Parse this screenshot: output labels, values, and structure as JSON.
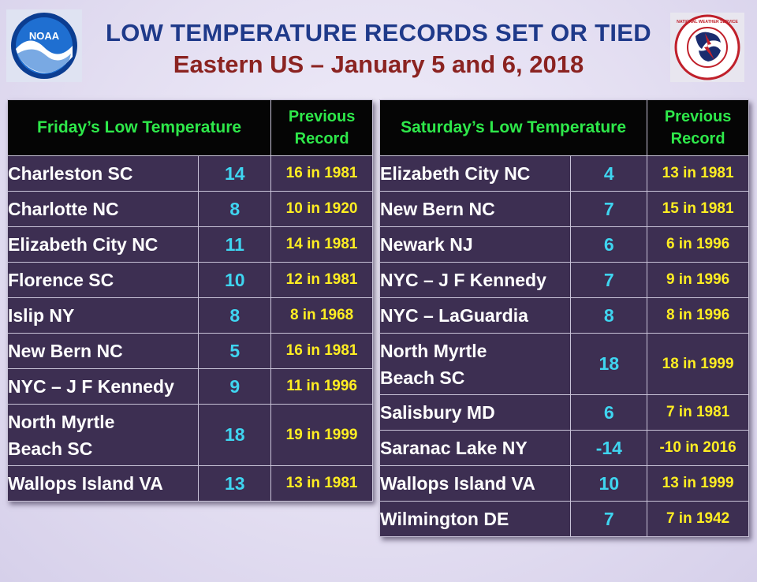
{
  "header": {
    "title": "LOW TEMPERATURE RECORDS  SET OR TIED",
    "subtitle": "Eastern US – January 5 and 6, 2018",
    "logo_left": "NOAA",
    "logo_right": "NATIONAL WEATHER SERVICE"
  },
  "colors": {
    "header_text": "#2ee84a",
    "city_text": "#ffffff",
    "temp_text": "#3fd5f0",
    "prev_text": "#ffee22",
    "row_bg": "#3d2f52"
  },
  "friday": {
    "title": "Friday’s Low  Temperature",
    "prev_label_1": "Previous",
    "prev_label_2": "Record",
    "rows": [
      {
        "city": "Charleston SC",
        "low": "14",
        "prev": "16 in 1981"
      },
      {
        "city": "Charlotte NC",
        "low": "8",
        "prev": "10 in 1920"
      },
      {
        "city": "Elizabeth City NC",
        "low": "11",
        "prev": "14 in 1981"
      },
      {
        "city": "Florence SC",
        "low": "10",
        "prev": "12 in 1981"
      },
      {
        "city": "Islip NY",
        "low": "8",
        "prev": "8 in 1968"
      },
      {
        "city": "New Bern NC",
        "low": "5",
        "prev": "16 in 1981"
      },
      {
        "city": "NYC – J F Kennedy",
        "low": "9",
        "prev": "11 in 1996"
      },
      {
        "city_1": "North Myrtle",
        "city_2": "Beach SC",
        "low": "18",
        "prev": "19 in 1999"
      },
      {
        "city": "Wallops Island VA",
        "low": "13",
        "prev": "13 in 1981"
      }
    ]
  },
  "saturday": {
    "title": "Saturday’s Low Temperature",
    "prev_label_1": "Previous",
    "prev_label_2": "Record",
    "rows": [
      {
        "city": "Elizabeth City NC",
        "low": "4",
        "prev": "13 in 1981"
      },
      {
        "city": "New Bern NC",
        "low": "7",
        "prev": "15 in 1981"
      },
      {
        "city": "Newark NJ",
        "low": "6",
        "prev": "6 in 1996"
      },
      {
        "city": "NYC – J F Kennedy",
        "low": "7",
        "prev": "9 in 1996"
      },
      {
        "city": "NYC – LaGuardia",
        "low": "8",
        "prev": "8 in 1996"
      },
      {
        "city_1": "North Myrtle",
        "city_2": "Beach SC",
        "low": "18",
        "prev": "18 in 1999"
      },
      {
        "city": "Salisbury MD",
        "low": "6",
        "prev": "7 in 1981"
      },
      {
        "city": "Saranac Lake NY",
        "low": "-14",
        "prev": "-10 in 2016"
      },
      {
        "city": "Wallops Island VA",
        "low": "10",
        "prev": "13 in 1999"
      },
      {
        "city": "Wilmington DE",
        "low": "7",
        "prev": "7 in 1942"
      }
    ]
  }
}
